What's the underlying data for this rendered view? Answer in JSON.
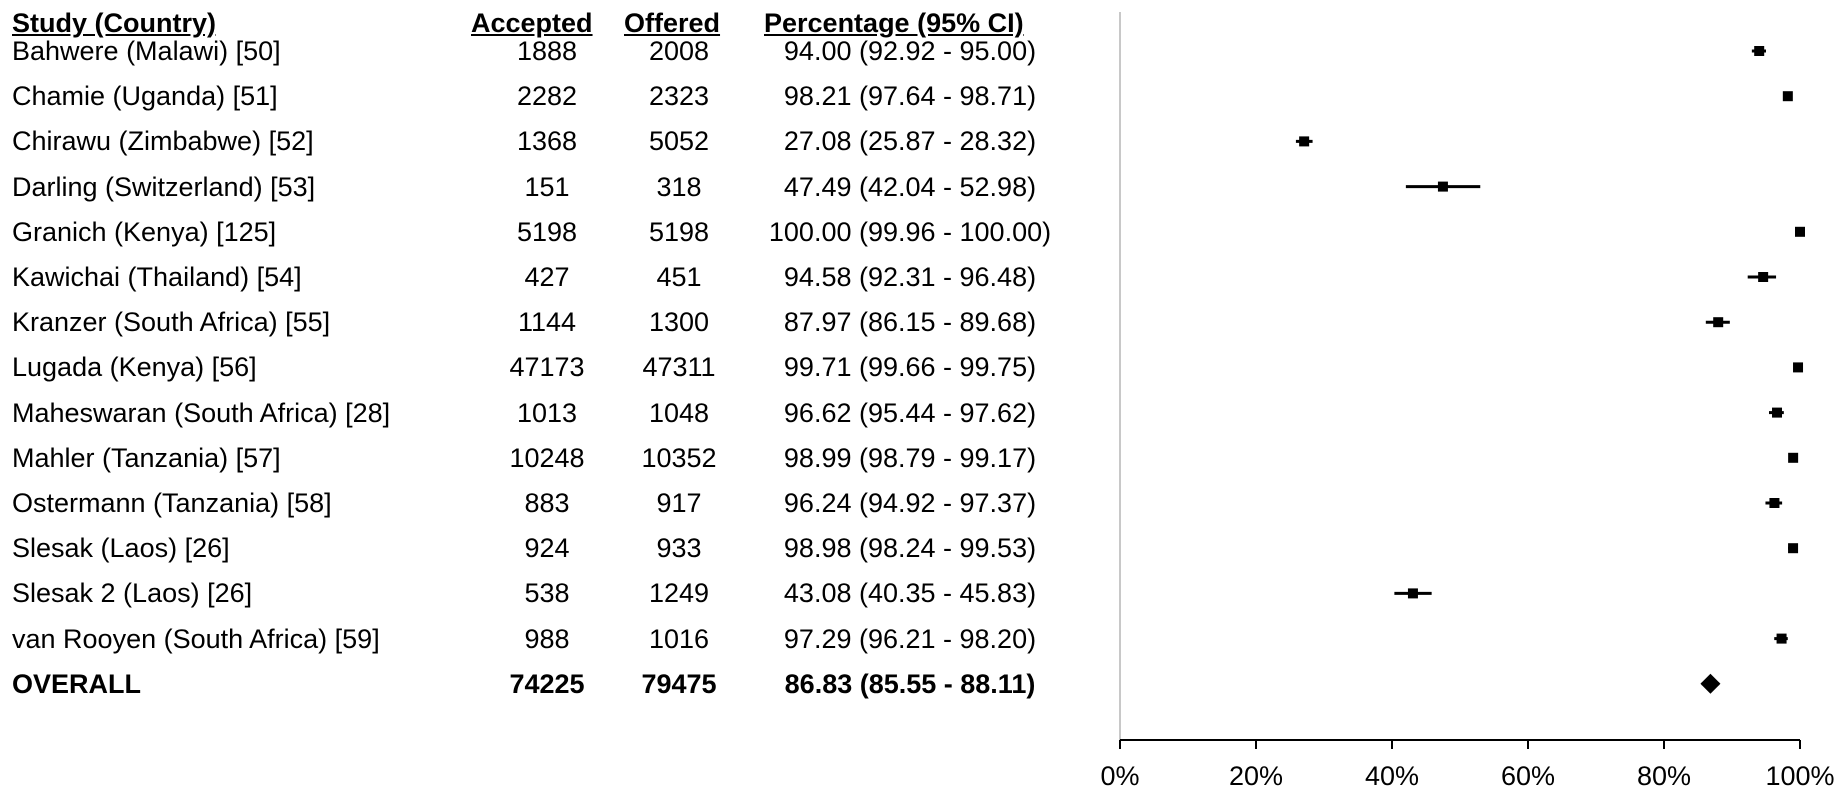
{
  "columns": {
    "study": "Study (Country)",
    "accepted": "Accepted",
    "offered": "Offered",
    "percentage": "Percentage (95% CI)"
  },
  "rows": [
    {
      "study": "Bahwere (Malawi) [50]",
      "accepted": "1888",
      "offered": "2008",
      "pct": "94.00 (92.92 - 95.00)"
    },
    {
      "study": "Chamie (Uganda) [51]",
      "accepted": "2282",
      "offered": "2323",
      "pct": "98.21 (97.64 - 98.71)"
    },
    {
      "study": "Chirawu (Zimbabwe) [52]",
      "accepted": "1368",
      "offered": "5052",
      "pct": "27.08 (25.87 - 28.32)"
    },
    {
      "study": "Darling (Switzerland) [53]",
      "accepted": "151",
      "offered": "318",
      "pct": "47.49 (42.04 - 52.98)"
    },
    {
      "study": "Granich (Kenya) [125]",
      "accepted": "5198",
      "offered": "5198",
      "pct": "100.00 (99.96 - 100.00)"
    },
    {
      "study": "Kawichai (Thailand) [54]",
      "accepted": "427",
      "offered": "451",
      "pct": "94.58 (92.31 - 96.48)"
    },
    {
      "study": "Kranzer (South Africa) [55]",
      "accepted": "1144",
      "offered": "1300",
      "pct": "87.97 (86.15 - 89.68)"
    },
    {
      "study": "Lugada (Kenya) [56]",
      "accepted": "47173",
      "offered": "47311",
      "pct": "99.71 (99.66 - 99.75)"
    },
    {
      "study": "Maheswaran (South Africa) [28]",
      "accepted": "1013",
      "offered": "1048",
      "pct": "96.62 (95.44 - 97.62)"
    },
    {
      "study": "Mahler (Tanzania) [57]",
      "accepted": "10248",
      "offered": "10352",
      "pct": "98.99 (98.79 - 99.17)"
    },
    {
      "study": "Ostermann (Tanzania) [58]",
      "accepted": "883",
      "offered": "917",
      "pct": "96.24 (94.92 - 97.37)"
    },
    {
      "study": "Slesak (Laos) [26]",
      "accepted": "924",
      "offered": "933",
      "pct": "98.98 (98.24 - 99.53)"
    },
    {
      "study": "Slesak 2 (Laos) [26]",
      "accepted": "538",
      "offered": "1249",
      "pct": "43.08 (40.35 - 45.83)"
    },
    {
      "study": "van Rooyen (South Africa) [59]",
      "accepted": "988",
      "offered": "1016",
      "pct": "97.29 (96.21 - 98.20)"
    }
  ],
  "overall": {
    "study": "OVERALL",
    "accepted": "74225",
    "offered": "79475",
    "pct": "86.83 (85.55 - 88.11)"
  },
  "chart_data": {
    "type": "scatter",
    "subtype": "forest-plot",
    "categories": [
      "Bahwere (Malawi) [50]",
      "Chamie (Uganda) [51]",
      "Chirawu (Zimbabwe) [52]",
      "Darling (Switzerland) [53]",
      "Granich (Kenya) [125]",
      "Kawichai (Thailand) [54]",
      "Kranzer (South Africa) [55]",
      "Lugada (Kenya) [56]",
      "Maheswaran (South Africa) [28]",
      "Mahler (Tanzania) [57]",
      "Ostermann (Tanzania) [58]",
      "Slesak (Laos) [26]",
      "Slesak 2 (Laos) [26]",
      "van Rooyen (South Africa) [59]"
    ],
    "series": [
      {
        "values": [
          94.0,
          98.21,
          27.08,
          47.49,
          100.0,
          94.58,
          87.97,
          99.71,
          96.62,
          98.99,
          96.24,
          98.98,
          43.08,
          97.29
        ],
        "ci_low": [
          92.92,
          97.64,
          25.87,
          42.04,
          99.96,
          92.31,
          86.15,
          99.66,
          95.44,
          98.79,
          94.92,
          98.24,
          40.35,
          96.21
        ],
        "ci_high": [
          95.0,
          98.71,
          28.32,
          52.98,
          100.0,
          96.48,
          89.68,
          99.75,
          97.62,
          99.17,
          97.37,
          99.53,
          45.83,
          98.2
        ]
      }
    ],
    "overall": {
      "value": 86.83,
      "ci_low": 85.55,
      "ci_high": 88.11
    },
    "xlim": [
      0,
      100
    ],
    "xticks": [
      "0%",
      "20%",
      "40%",
      "60%",
      "80%",
      "100%"
    ],
    "xtick_values": [
      0,
      20,
      40,
      60,
      80,
      100
    ],
    "grid": false,
    "marker_color": "#000000"
  }
}
